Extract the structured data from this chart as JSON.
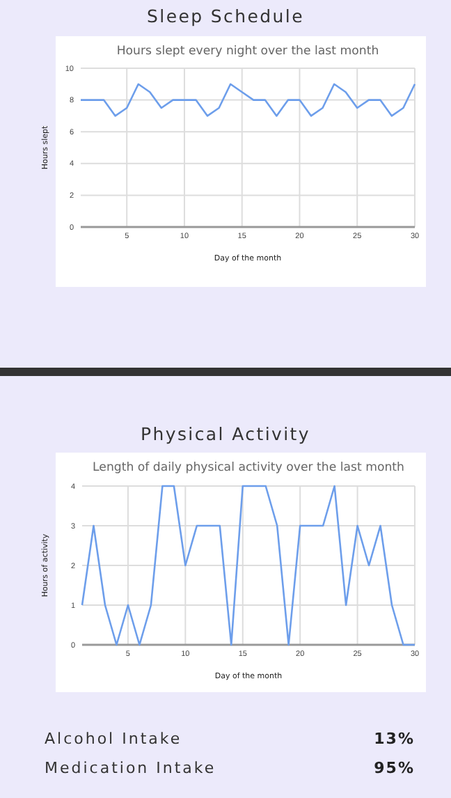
{
  "chart_data": [
    {
      "type": "line",
      "title": "Sleep Schedule",
      "subtitle": "Hours slept every night over the last month",
      "xlabel": "Day of the month",
      "ylabel": "Hours slept",
      "x": [
        1,
        2,
        3,
        4,
        5,
        6,
        7,
        8,
        9,
        10,
        11,
        12,
        13,
        14,
        15,
        16,
        17,
        18,
        19,
        20,
        21,
        22,
        23,
        24,
        25,
        26,
        27,
        28,
        29,
        30
      ],
      "series": [
        {
          "color": "#6d9eeb",
          "values": [
            8,
            8,
            8,
            7,
            7.5,
            9,
            8.5,
            7.5,
            8,
            8,
            8,
            7,
            7.5,
            9,
            8.5,
            8,
            8,
            7,
            8,
            8,
            7,
            7.5,
            9,
            8.5,
            7.5,
            8,
            8,
            7,
            7.5,
            9
          ]
        }
      ],
      "xlim": [
        1,
        30
      ],
      "xticks": [
        5,
        10,
        15,
        20,
        25,
        30
      ],
      "ylim": [
        0,
        10
      ],
      "yticks": [
        0,
        2,
        4,
        6,
        8,
        10
      ],
      "grid": true,
      "marker": "none",
      "line_style": "solid"
    },
    {
      "type": "line",
      "title": "Physical Activity",
      "subtitle": "Length of daily physical activity over the last month",
      "xlabel": "Day of the month",
      "ylabel": "Hours of activity",
      "x": [
        1,
        2,
        3,
        4,
        5,
        6,
        7,
        8,
        9,
        10,
        11,
        12,
        13,
        14,
        15,
        16,
        17,
        18,
        19,
        20,
        21,
        22,
        23,
        24,
        25,
        26,
        27,
        28,
        29,
        30
      ],
      "series": [
        {
          "color": "#6d9eeb",
          "values": [
            1,
            3,
            1,
            0,
            1,
            0,
            1,
            4,
            4,
            2,
            3,
            3,
            3,
            0,
            4,
            4,
            4,
            3,
            0,
            3,
            3,
            3,
            4,
            1,
            3,
            2,
            3,
            1,
            0,
            0
          ]
        }
      ],
      "xlim": [
        1,
        30
      ],
      "xticks": [
        5,
        10,
        15,
        20,
        25,
        30
      ],
      "ylim": [
        0,
        4
      ],
      "yticks": [
        0,
        1,
        2,
        3,
        4
      ],
      "grid": true,
      "marker": "none",
      "line_style": "solid"
    },
    {
      "type": "other",
      "categories": [
        "Alcohol Intake",
        "Medication Intake"
      ],
      "value_labels": [
        "13%",
        "95%"
      ]
    }
  ]
}
